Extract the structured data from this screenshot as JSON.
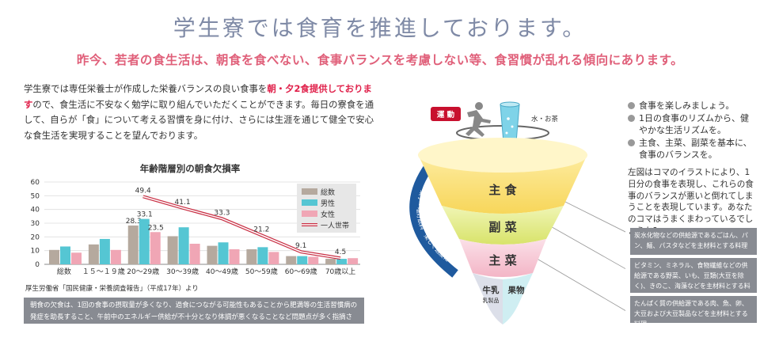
{
  "header": {
    "title": "学生寮では食育を推進しております。",
    "subtitle": "昨今、若者の食生活は、朝食を食べない、食事バランスを考慮しない等、食習慣が乱れる傾向にあります。"
  },
  "intro": {
    "part1": "学生寮では専任栄養士が作成した栄養バランスの良い食事を",
    "highlight": "朝・夕2食提供しております",
    "part2": "ので、食生活に不安なく勉学に取り組んでいただくことができます。毎日の寮食を通して、自らが「食」について考える習慣を身に付け、さらには生涯を通じて健全で安心な食生活を実現することを望んでおります。"
  },
  "chart_data": {
    "type": "bar",
    "title": "年齢階層別の朝食欠損率",
    "categories": [
      "総数",
      "１５～１９歳",
      "20～29歳",
      "30～39歳",
      "40～49歳",
      "50～59歳",
      "60～69歳",
      "70歳以上"
    ],
    "series": [
      {
        "name": "総数",
        "values": [
          10.5,
          14.5,
          28.3,
          20.5,
          13.5,
          11,
          6,
          4
        ],
        "color": "#b5a99e"
      },
      {
        "name": "男性",
        "values": [
          13,
          18.5,
          33.1,
          27,
          16,
          12.5,
          6,
          4
        ],
        "color": "#55c6d3"
      },
      {
        "name": "女性",
        "values": [
          8.5,
          10.5,
          23.5,
          15,
          11,
          9,
          5.5,
          4.5
        ],
        "color": "#f0a6b5"
      },
      {
        "name": "一人世帯",
        "values": [
          null,
          null,
          49.4,
          41.1,
          33.3,
          21.2,
          9.1,
          4.5
        ],
        "color": "#c93045"
      }
    ],
    "data_labels": {
      "総数": [
        "",
        "",
        "28.3",
        "",
        "",
        "",
        "",
        ""
      ],
      "男性": [
        "",
        "",
        "33.1",
        "",
        "",
        "",
        "",
        ""
      ],
      "女性": [
        "",
        "",
        "23.5",
        "",
        "",
        "",
        "",
        ""
      ],
      "一人世帯": [
        "",
        "",
        "49.4",
        "41.1",
        "33.3",
        "21.2",
        "9.1",
        "4.5"
      ]
    },
    "yticks": [
      "0",
      "10",
      "20",
      "30",
      "40",
      "50",
      "60"
    ],
    "ylim": [
      0,
      60
    ],
    "legend_position": "top-right"
  },
  "source": "厚生労働省「国民健康・栄養調査報告」（平成17年）より",
  "note": "朝食の欠食は、1回の食事の摂取量が多くなり、過食につながる可能性もあることから肥満等の生活習慣病の発症を助長すること、午前中のエネルギー供給が不十分となり体調が悪くなることなど問題点が多く指摘されております。",
  "diagram": {
    "exercise_badge": "運 動",
    "water_label": "水・お茶",
    "shushoku": "主 食",
    "fukusai": "副 菜",
    "shusai": "主 菜",
    "milk": "牛乳",
    "milk_sub": "乳製品",
    "fruit": "果物",
    "arc_text": "菓子・嗜好飲料　楽しく適度に"
  },
  "bullets": [
    "食事を楽しみましょう。",
    "1日の食事のリズムから、健やかな生活リズムを。",
    "主食、主菜、副菜を基本に、食事のバランスを。"
  ],
  "explain": "左図はコマのイラストにより、1日分の食事を表現し、これらの食事のバランスが悪いと倒れてしまうことを表現しています。あなたのコマはうまくまわっているでしょうか?",
  "boxes": [
    "炭水化物などの供給源であるごはん、パン、麺、パスタなどを主材料とする料理",
    "ビタミン、ミネラル、食物繊維などの供給源である野菜、いも、豆類(大豆を除く)、きのこ、海藻などを主材料とする料理",
    "たんぱく質の供給源である肉、魚、卵、大豆および大豆製品などを主材料とする料理"
  ]
}
